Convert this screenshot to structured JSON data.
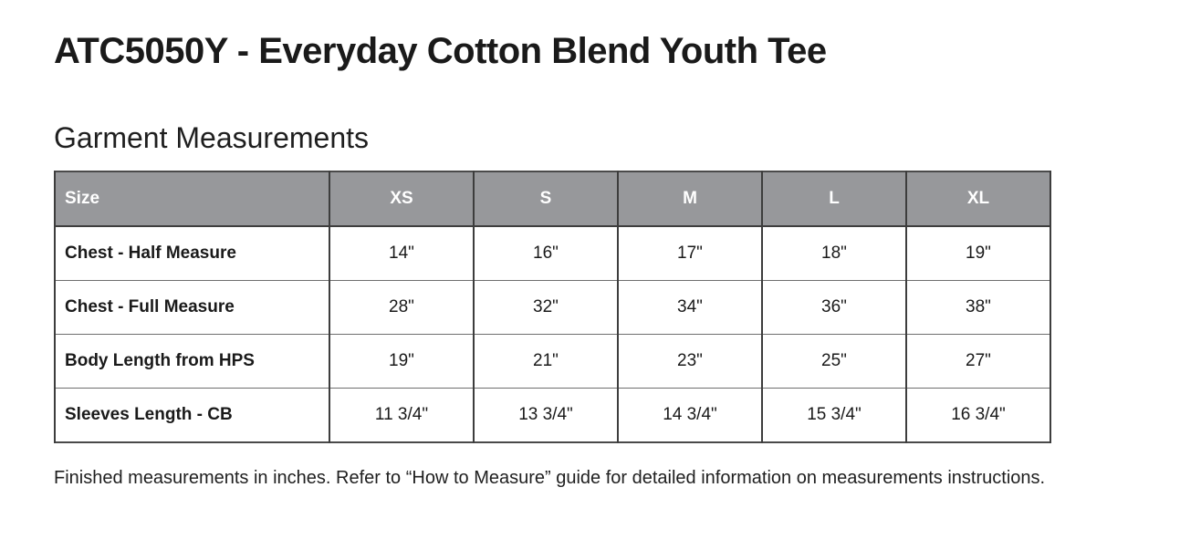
{
  "page": {
    "title": "ATC5050Y - Everyday Cotton Blend Youth Tee",
    "section_heading": "Garment Measurements",
    "footnote": "Finished measurements in inches. Refer to “How to Measure” guide for detailed information on measurements instructions."
  },
  "colors": {
    "header_bg": "#97989B",
    "header_text": "#FFFFFF",
    "border_dark": "#3D3D3D",
    "border_light": "#6E6E6E",
    "text": "#1A1A1A"
  },
  "table": {
    "columns": [
      "Size",
      "XS",
      "S",
      "M",
      "L",
      "XL"
    ],
    "rows": [
      {
        "label": "Chest - Half Measure",
        "values": [
          "14\"",
          "16\"",
          "17\"",
          "18\"",
          "19\""
        ]
      },
      {
        "label": "Chest - Full Measure",
        "values": [
          "28\"",
          "32\"",
          "34\"",
          "36\"",
          "38\""
        ]
      },
      {
        "label": "Body Length from HPS",
        "values": [
          "19\"",
          "21\"",
          "23\"",
          "25\"",
          "27\""
        ]
      },
      {
        "label": "Sleeves Length - CB",
        "values": [
          "11 3/4\"",
          "13 3/4\"",
          "14 3/4\"",
          "15 3/4\"",
          "16 3/4\""
        ]
      }
    ]
  }
}
